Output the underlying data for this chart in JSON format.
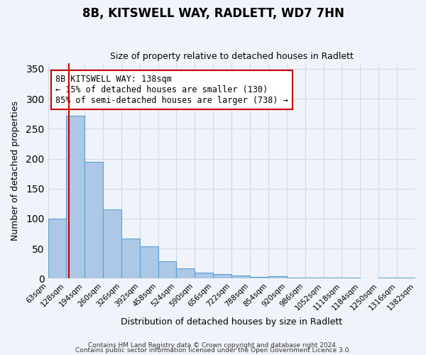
{
  "title": "8B, KITSWELL WAY, RADLETT, WD7 7HN",
  "subtitle": "Size of property relative to detached houses in Radlett",
  "xlabel": "Distribution of detached houses by size in Radlett",
  "ylabel": "Number of detached properties",
  "bar_edges": [
    63,
    128,
    194,
    260,
    326,
    392,
    458,
    524,
    590,
    656,
    722,
    788,
    854,
    920,
    986,
    1052,
    1118,
    1184,
    1250,
    1316,
    1382
  ],
  "bar_heights": [
    100,
    272,
    195,
    115,
    67,
    54,
    29,
    17,
    10,
    8,
    5,
    3,
    4,
    1,
    2,
    1,
    1,
    0,
    1,
    1
  ],
  "bar_color": "#adc8e6",
  "bar_edge_color": "#5a9fd4",
  "bar_linewidth": 0.8,
  "grid_color": "#d0d8e8",
  "bg_color": "#f0f4fa",
  "red_line_x": 138,
  "annotation_text": "8B KITSWELL WAY: 138sqm\n← 15% of detached houses are smaller (130)\n85% of semi-detached houses are larger (738) →",
  "annotation_box_color": "#ffffff",
  "annotation_box_edge": "#cc0000",
  "ylim": [
    0,
    360
  ],
  "yticks": [
    0,
    50,
    100,
    150,
    200,
    250,
    300,
    350
  ],
  "tick_labels": [
    "63sqm",
    "128sqm",
    "194sqm",
    "260sqm",
    "326sqm",
    "392sqm",
    "458sqm",
    "524sqm",
    "590sqm",
    "656sqm",
    "722sqm",
    "788sqm",
    "854sqm",
    "920sqm",
    "986sqm",
    "1052sqm",
    "1118sqm",
    "1184sqm",
    "1250sqm",
    "1316sqm",
    "1382sqm"
  ],
  "footer1": "Contains HM Land Registry data © Crown copyright and database right 2024.",
  "footer2": "Contains public sector information licensed under the Open Government Licence 3.0."
}
